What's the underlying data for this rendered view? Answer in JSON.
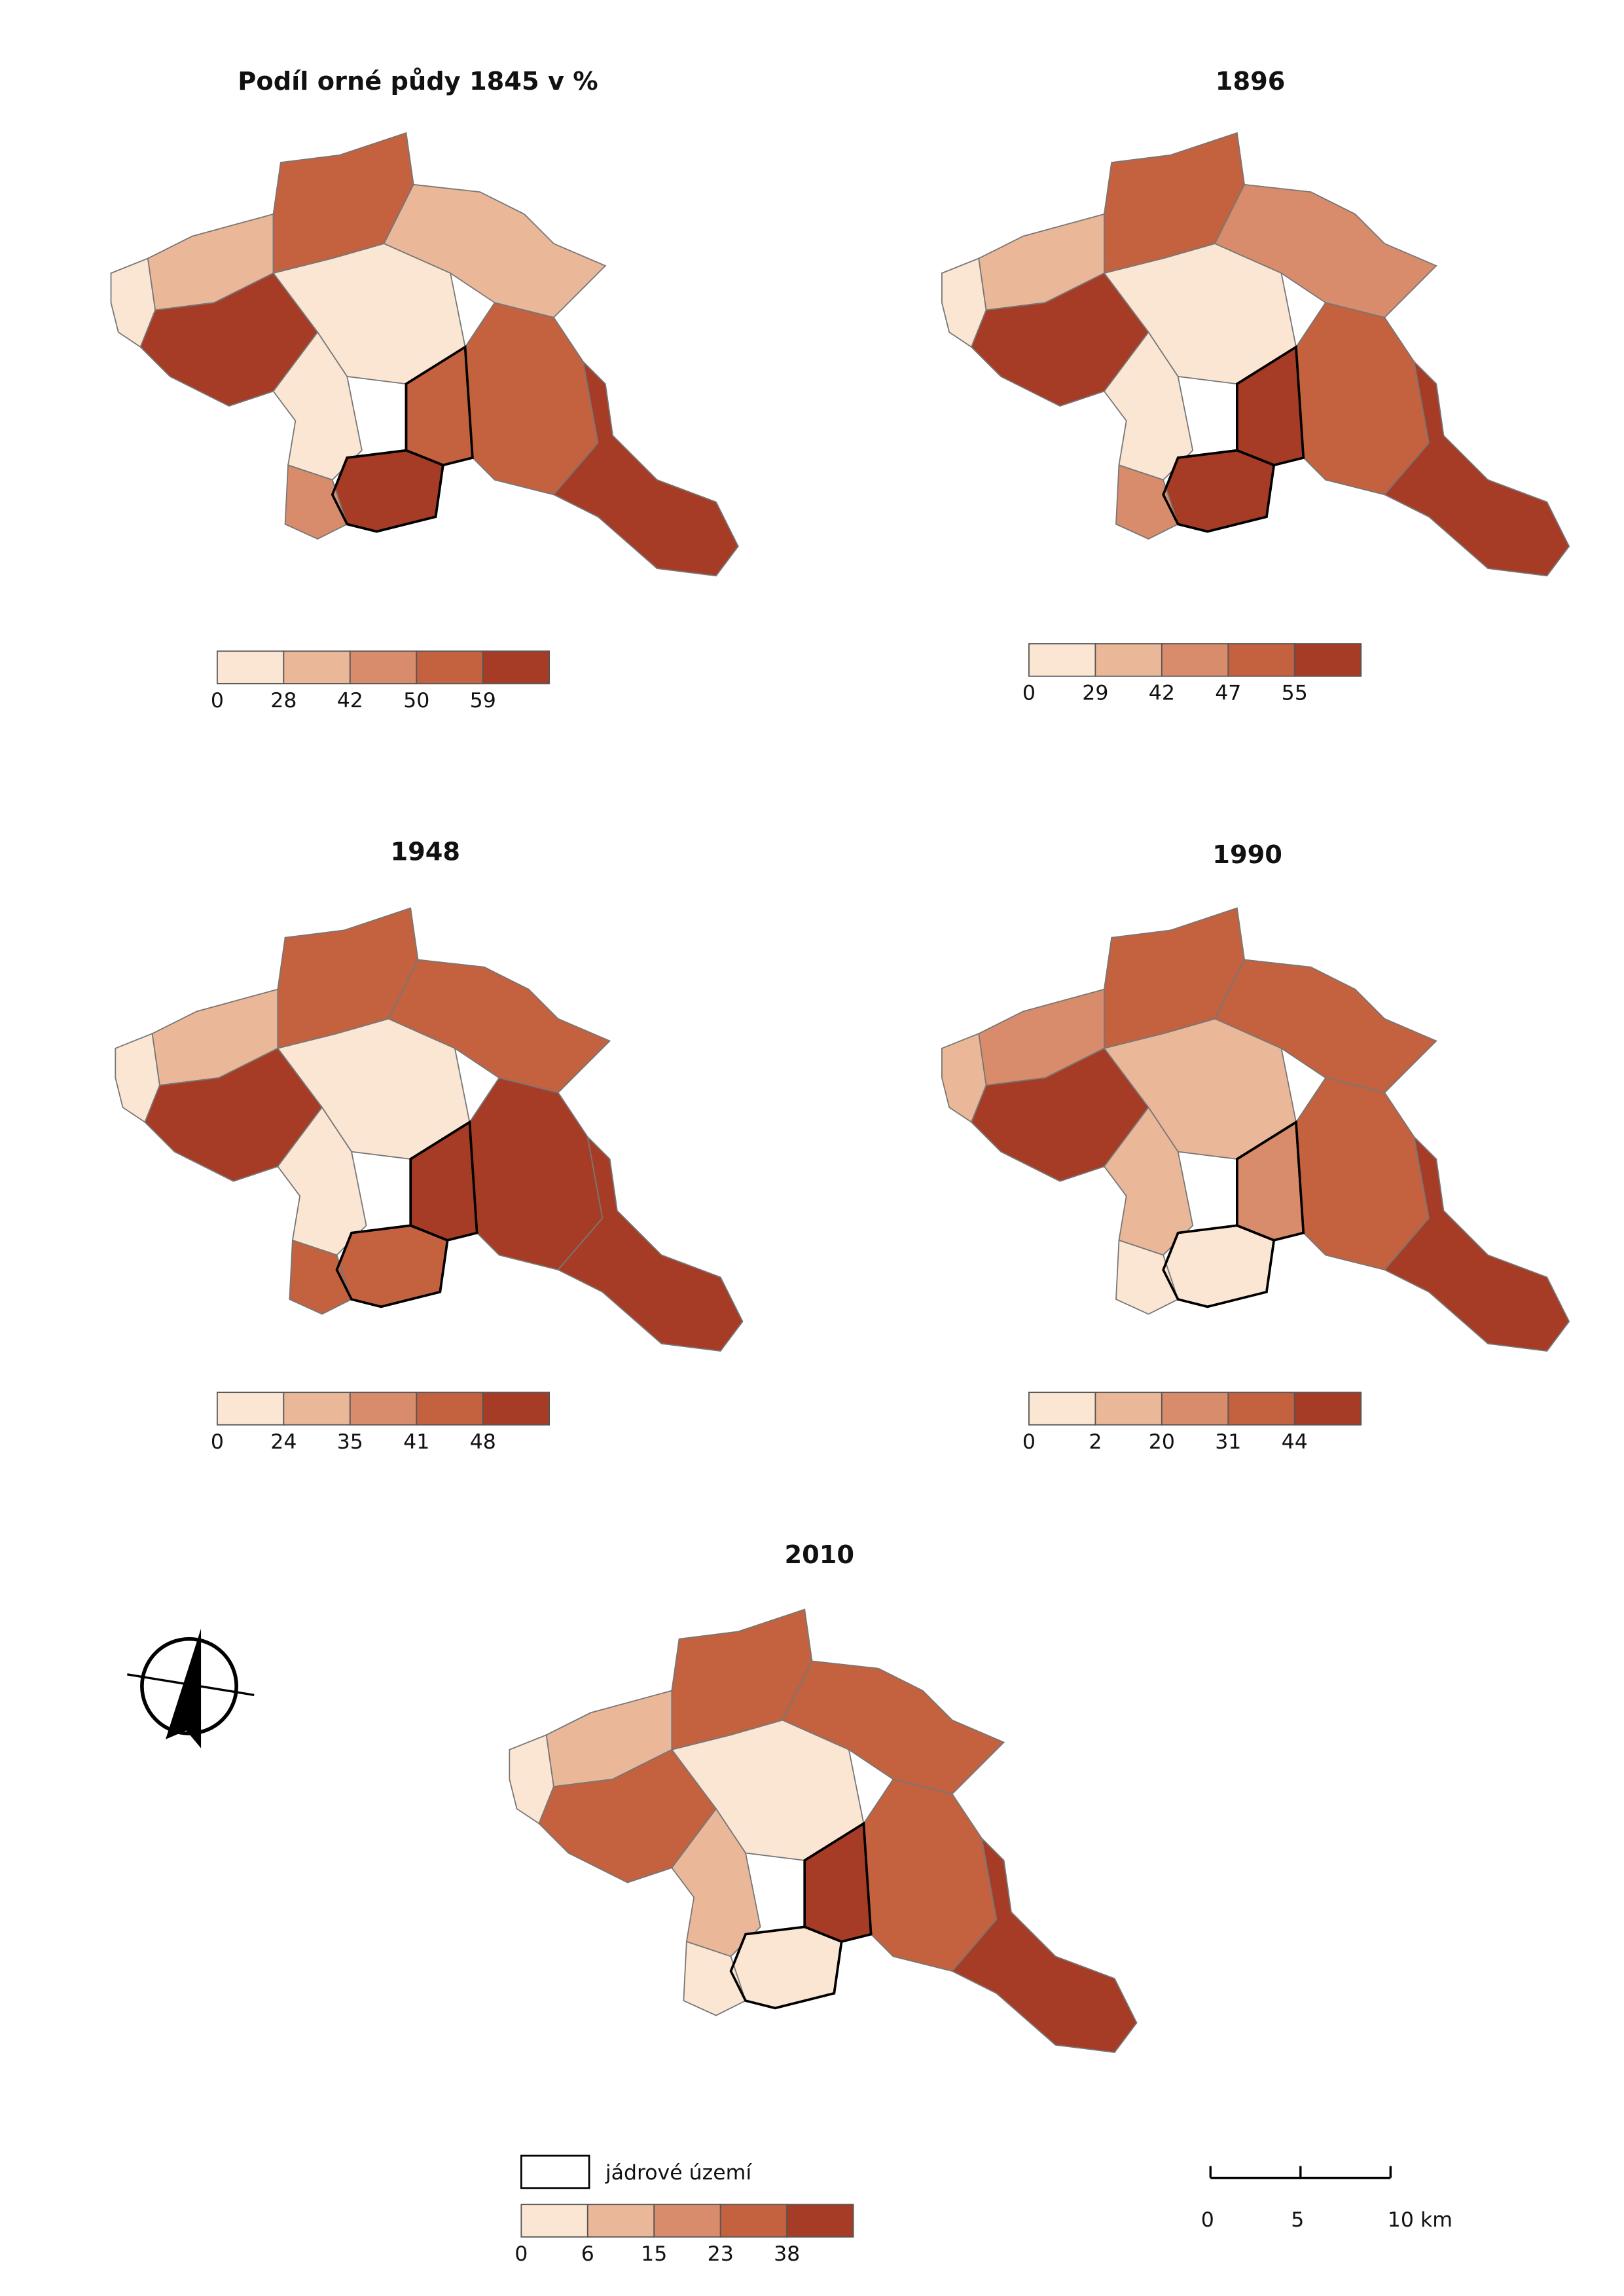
{
  "maps": [
    {
      "title": "Podíl orné půdy 1845 v %",
      "legend_breaks": [
        0,
        28,
        42,
        50,
        59
      ],
      "region_classes": [
        0,
        1,
        3,
        1,
        0,
        4,
        0,
        4,
        3,
        3,
        4,
        2
      ]
    },
    {
      "title": "1896",
      "legend_breaks": [
        0,
        29,
        42,
        47,
        55
      ],
      "region_classes": [
        0,
        1,
        3,
        2,
        0,
        4,
        0,
        4,
        4,
        3,
        4,
        2
      ]
    },
    {
      "title": "1948",
      "legend_breaks": [
        0,
        24,
        35,
        41,
        48
      ],
      "region_classes": [
        0,
        1,
        3,
        3,
        0,
        4,
        0,
        3,
        4,
        4,
        4,
        3
      ]
    },
    {
      "title": "1990",
      "legend_breaks": [
        0,
        2,
        20,
        31,
        44
      ],
      "region_classes": [
        1,
        2,
        3,
        3,
        1,
        4,
        1,
        0,
        2,
        3,
        4,
        0
      ]
    },
    {
      "title": "2010",
      "legend_breaks": [
        0,
        6,
        15,
        23,
        38
      ],
      "region_classes": [
        0,
        1,
        3,
        3,
        0,
        3,
        1,
        0,
        4,
        3,
        4,
        0
      ]
    }
  ],
  "class_colors": [
    "#fbe6d3",
    "#eab899",
    "#d98c6c",
    "#c4613f",
    "#a63c26"
  ],
  "core_area_label": "jádrové území",
  "scale_bar_ticks": [
    0,
    5,
    {
      "value": 10,
      "label": "10 km"
    }
  ]
}
